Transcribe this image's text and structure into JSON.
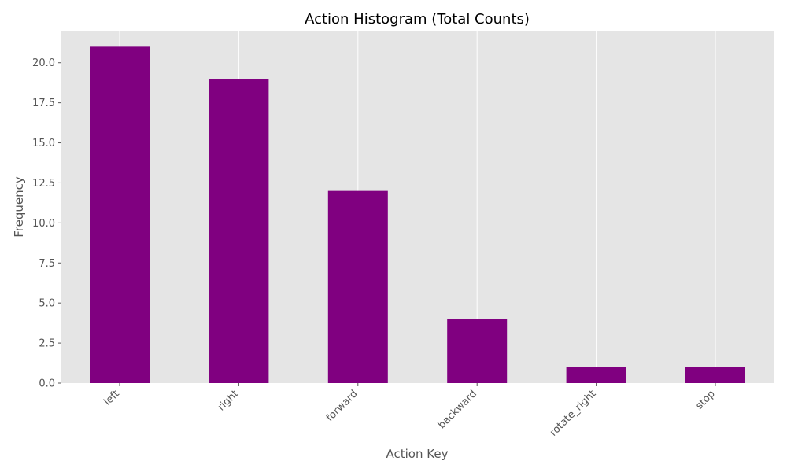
{
  "chart_data": {
    "type": "bar",
    "title": "Action Histogram (Total Counts)",
    "xlabel": "Action Key",
    "ylabel": "Frequency",
    "categories": [
      "left",
      "right",
      "forward",
      "backward",
      "rotate_right",
      "stop"
    ],
    "values": [
      21,
      19,
      12,
      4,
      1,
      1
    ],
    "ylim": [
      0,
      22
    ],
    "yticks": [
      0.0,
      2.5,
      5.0,
      7.5,
      10.0,
      12.5,
      15.0,
      17.5,
      20.0
    ],
    "ytick_labels": [
      "0.0",
      "2.5",
      "5.0",
      "7.5",
      "10.0",
      "12.5",
      "15.0",
      "17.5",
      "20.0"
    ],
    "bar_color": "#800080",
    "plot_background": "#e5e5e5",
    "grid": "vertical"
  }
}
